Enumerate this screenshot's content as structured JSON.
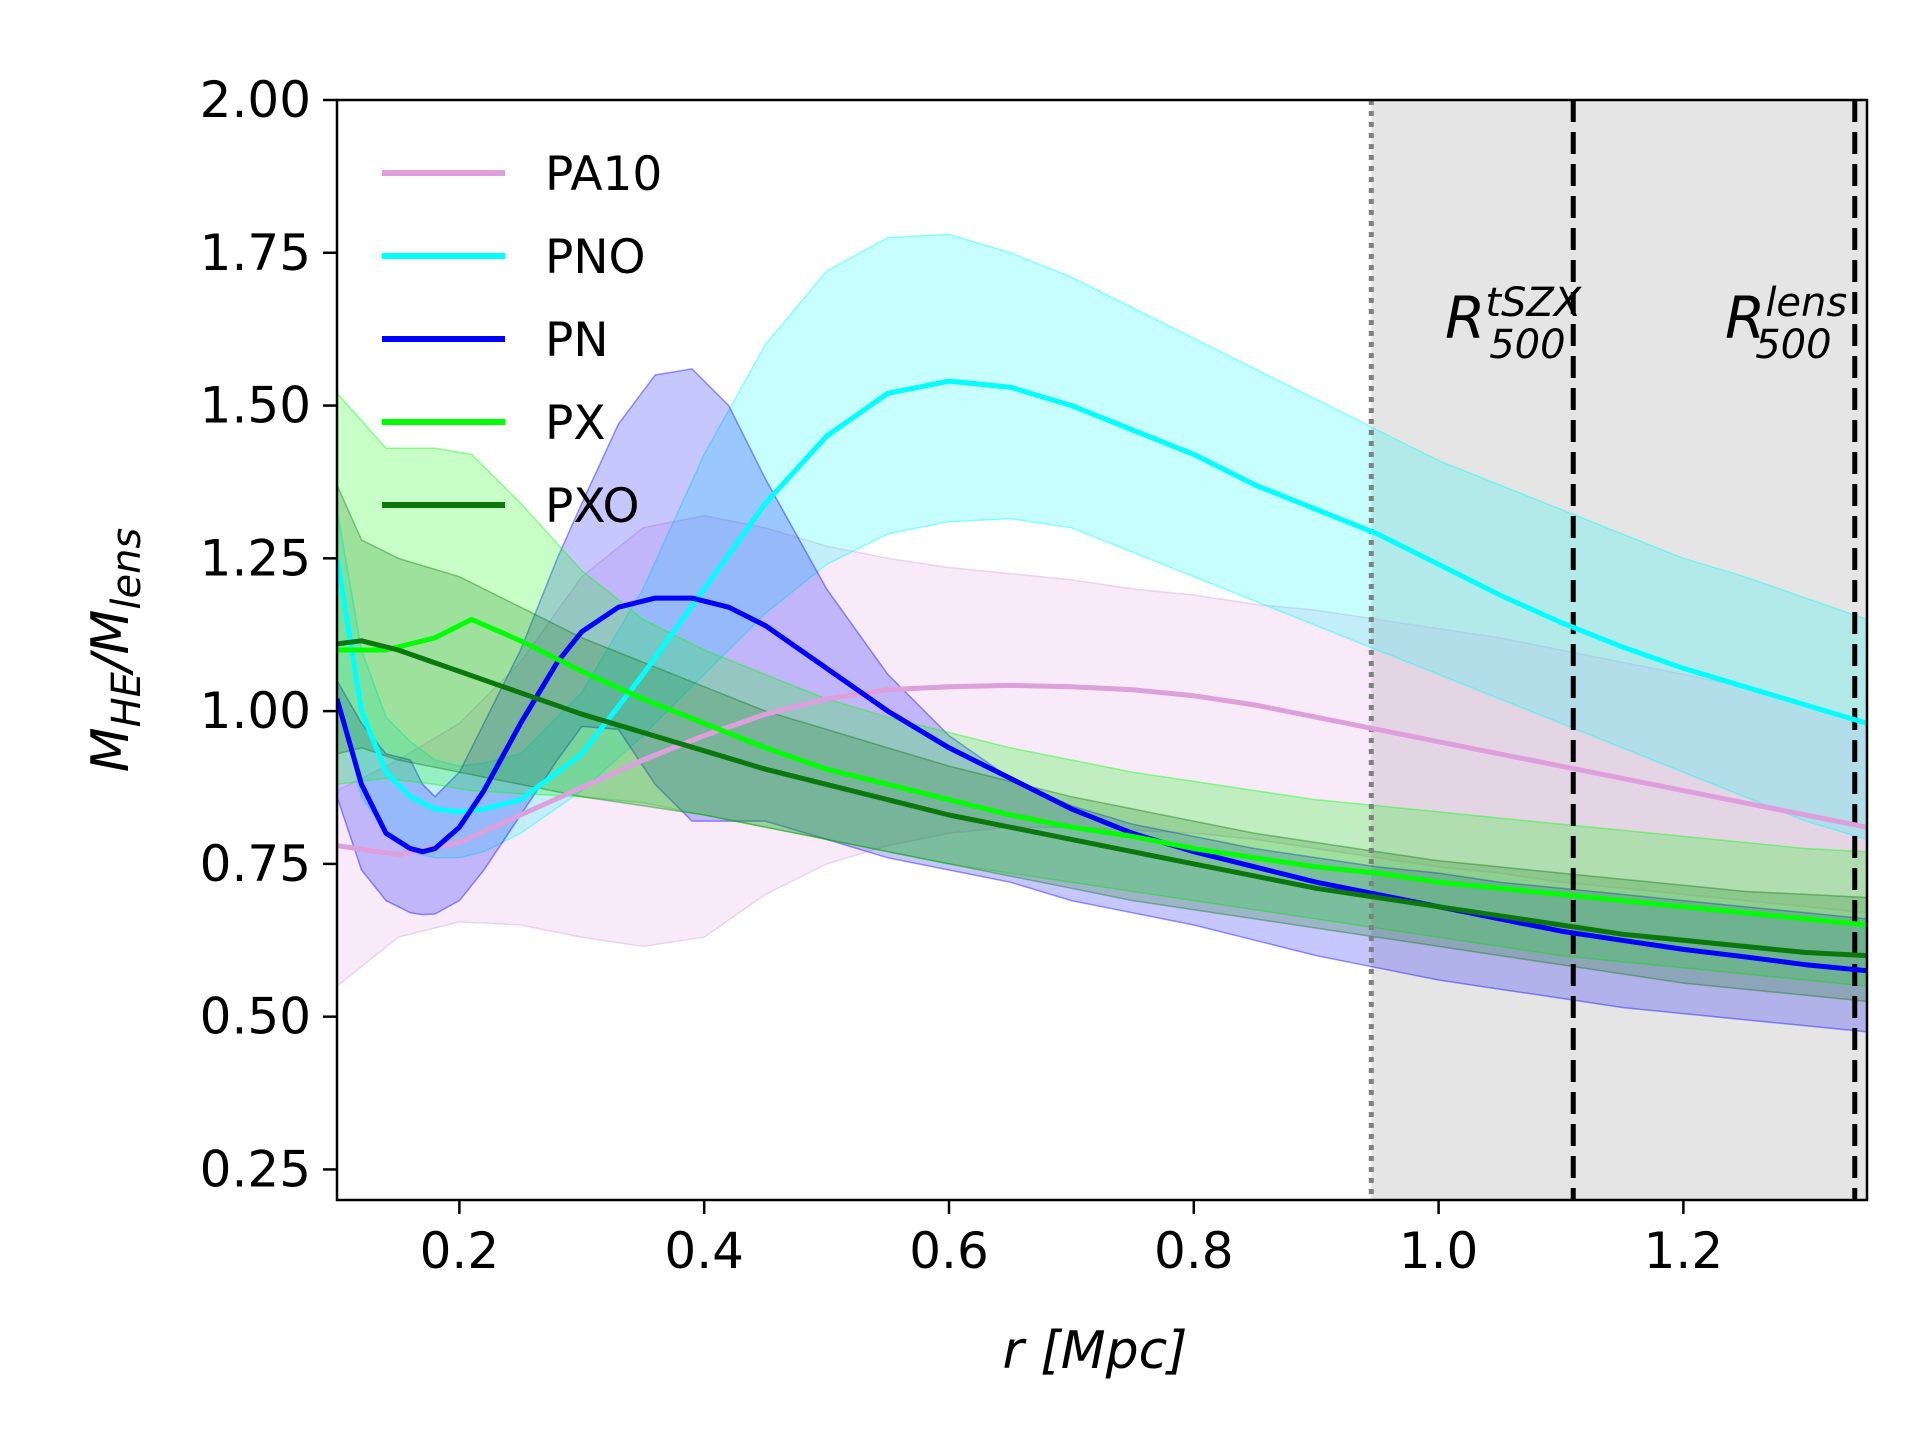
{
  "chart_data": {
    "type": "line",
    "title": "",
    "xlabel": "r [Mpc]",
    "ylabel": "M_HE/M_lens",
    "xlim": [
      0.1,
      1.35
    ],
    "ylim": [
      0.2,
      2.0
    ],
    "xticks": [
      {
        "value": 0.2,
        "label": "0.2"
      },
      {
        "value": 0.4,
        "label": "0.4"
      },
      {
        "value": 0.6,
        "label": "0.6"
      },
      {
        "value": 0.8,
        "label": "0.8"
      },
      {
        "value": 1.0,
        "label": "1.0"
      },
      {
        "value": 1.2,
        "label": "1.2"
      }
    ],
    "yticks": [
      {
        "value": 0.25,
        "label": "0.25"
      },
      {
        "value": 0.5,
        "label": "0.50"
      },
      {
        "value": 0.75,
        "label": "0.75"
      },
      {
        "value": 1.0,
        "label": "1.00"
      },
      {
        "value": 1.25,
        "label": "1.25"
      },
      {
        "value": 1.5,
        "label": "1.50"
      },
      {
        "value": 1.75,
        "label": "1.75"
      },
      {
        "value": 2.0,
        "label": "2.00"
      }
    ],
    "grid": false,
    "legend_position": "top-left",
    "shaded_region": {
      "x_from": 0.945,
      "x_to": 1.35,
      "color": "#e5e5e5"
    },
    "vlines": [
      {
        "x": 0.945,
        "style": "dotted",
        "color": "#808080"
      },
      {
        "x": 1.11,
        "style": "dashed",
        "color": "#000000",
        "label_main": "R",
        "label_sup": "tSZX",
        "label_sub": "500"
      },
      {
        "x": 1.34,
        "style": "dashed",
        "color": "#000000",
        "label_main": "R",
        "label_sup": "lens",
        "label_sub": "500"
      }
    ],
    "series": [
      {
        "name": "PA10",
        "color": "#dda0dd",
        "x": [
          0.1,
          0.15,
          0.2,
          0.25,
          0.3,
          0.35,
          0.4,
          0.45,
          0.5,
          0.55,
          0.6,
          0.65,
          0.7,
          0.75,
          0.8,
          0.85,
          0.9,
          0.95,
          1.0,
          1.05,
          1.1,
          1.15,
          1.2,
          1.25,
          1.3,
          1.35
        ],
        "y": [
          0.78,
          0.765,
          0.785,
          0.83,
          0.875,
          0.92,
          0.96,
          0.995,
          1.02,
          1.035,
          1.04,
          1.042,
          1.04,
          1.035,
          1.025,
          1.01,
          0.99,
          0.97,
          0.95,
          0.93,
          0.91,
          0.89,
          0.87,
          0.85,
          0.83,
          0.81
        ],
        "lower": [
          0.55,
          0.63,
          0.655,
          0.65,
          0.63,
          0.615,
          0.63,
          0.7,
          0.75,
          0.78,
          0.8,
          0.81,
          0.81,
          0.805,
          0.8,
          0.79,
          0.775,
          0.76,
          0.745,
          0.735,
          0.72,
          0.71,
          0.7,
          0.69,
          0.68,
          0.67
        ],
        "upper": [
          0.87,
          0.92,
          0.98,
          1.08,
          1.22,
          1.3,
          1.32,
          1.3,
          1.27,
          1.25,
          1.235,
          1.225,
          1.215,
          1.2,
          1.19,
          1.175,
          1.165,
          1.15,
          1.135,
          1.12,
          1.1,
          1.08,
          1.06,
          1.04,
          1.01,
          0.98
        ]
      },
      {
        "name": "PNO",
        "color": "#00ffff",
        "x": [
          0.1,
          0.12,
          0.14,
          0.16,
          0.18,
          0.2,
          0.22,
          0.25,
          0.3,
          0.35,
          0.4,
          0.45,
          0.5,
          0.55,
          0.6,
          0.65,
          0.7,
          0.75,
          0.8,
          0.85,
          0.9,
          0.95,
          1.0,
          1.05,
          1.1,
          1.15,
          1.2,
          1.25,
          1.3,
          1.35
        ],
        "y": [
          1.25,
          1.0,
          0.9,
          0.86,
          0.84,
          0.835,
          0.84,
          0.855,
          0.93,
          1.06,
          1.2,
          1.34,
          1.45,
          1.52,
          1.54,
          1.53,
          1.5,
          1.46,
          1.42,
          1.37,
          1.33,
          1.29,
          1.24,
          1.19,
          1.145,
          1.105,
          1.07,
          1.04,
          1.01,
          0.98
        ],
        "lower": [
          1.03,
          0.86,
          0.8,
          0.77,
          0.76,
          0.76,
          0.77,
          0.8,
          0.87,
          0.96,
          1.06,
          1.16,
          1.24,
          1.29,
          1.31,
          1.315,
          1.3,
          1.26,
          1.22,
          1.18,
          1.14,
          1.1,
          1.06,
          1.02,
          0.98,
          0.94,
          0.9,
          0.86,
          0.82,
          0.79
        ],
        "upper": [
          1.33,
          1.1,
          0.99,
          0.95,
          0.92,
          0.91,
          0.915,
          0.93,
          1.03,
          1.2,
          1.42,
          1.6,
          1.72,
          1.775,
          1.78,
          1.75,
          1.71,
          1.66,
          1.61,
          1.56,
          1.51,
          1.46,
          1.41,
          1.37,
          1.33,
          1.29,
          1.25,
          1.22,
          1.185,
          1.15
        ]
      },
      {
        "name": "PN",
        "color": "#0000ff",
        "x": [
          0.1,
          0.12,
          0.14,
          0.16,
          0.17,
          0.18,
          0.2,
          0.22,
          0.25,
          0.28,
          0.3,
          0.33,
          0.36,
          0.39,
          0.42,
          0.45,
          0.5,
          0.55,
          0.6,
          0.65,
          0.7,
          0.75,
          0.8,
          0.85,
          0.9,
          0.95,
          1.0,
          1.05,
          1.1,
          1.15,
          1.2,
          1.25,
          1.3,
          1.35
        ],
        "y": [
          1.02,
          0.88,
          0.8,
          0.775,
          0.77,
          0.775,
          0.81,
          0.87,
          0.98,
          1.08,
          1.13,
          1.17,
          1.185,
          1.185,
          1.17,
          1.14,
          1.07,
          1.0,
          0.94,
          0.89,
          0.84,
          0.8,
          0.77,
          0.745,
          0.72,
          0.7,
          0.68,
          0.66,
          0.64,
          0.625,
          0.61,
          0.598,
          0.585,
          0.575
        ],
        "lower": [
          0.86,
          0.74,
          0.69,
          0.67,
          0.667,
          0.668,
          0.69,
          0.74,
          0.83,
          0.92,
          0.975,
          0.97,
          0.88,
          0.82,
          0.82,
          0.82,
          0.79,
          0.76,
          0.74,
          0.72,
          0.69,
          0.67,
          0.65,
          0.625,
          0.6,
          0.58,
          0.56,
          0.545,
          0.53,
          0.515,
          0.505,
          0.495,
          0.485,
          0.475
        ],
        "upper": [
          1.05,
          0.98,
          0.93,
          0.92,
          0.88,
          0.86,
          0.9,
          0.98,
          1.1,
          1.25,
          1.34,
          1.47,
          1.55,
          1.56,
          1.5,
          1.38,
          1.2,
          1.06,
          0.96,
          0.89,
          0.845,
          0.815,
          0.795,
          0.775,
          0.76,
          0.745,
          0.735,
          0.72,
          0.71,
          0.7,
          0.69,
          0.68,
          0.67,
          0.66
        ]
      },
      {
        "name": "PX",
        "color": "#00ff00",
        "x": [
          0.1,
          0.14,
          0.18,
          0.21,
          0.25,
          0.3,
          0.35,
          0.4,
          0.45,
          0.5,
          0.55,
          0.6,
          0.65,
          0.7,
          0.75,
          0.8,
          0.85,
          0.9,
          0.95,
          1.0,
          1.05,
          1.1,
          1.15,
          1.2,
          1.25,
          1.3,
          1.35
        ],
        "y": [
          1.1,
          1.1,
          1.12,
          1.15,
          1.115,
          1.065,
          1.02,
          0.98,
          0.94,
          0.905,
          0.88,
          0.855,
          0.83,
          0.81,
          0.795,
          0.775,
          0.76,
          0.745,
          0.735,
          0.72,
          0.71,
          0.7,
          0.69,
          0.68,
          0.67,
          0.66,
          0.65
        ],
        "lower": [
          0.88,
          0.89,
          0.88,
          0.87,
          0.865,
          0.86,
          0.85,
          0.83,
          0.81,
          0.79,
          0.77,
          0.75,
          0.735,
          0.72,
          0.705,
          0.69,
          0.675,
          0.66,
          0.645,
          0.63,
          0.615,
          0.6,
          0.59,
          0.58,
          0.57,
          0.56,
          0.55
        ],
        "upper": [
          1.52,
          1.43,
          1.43,
          1.42,
          1.34,
          1.23,
          1.15,
          1.1,
          1.06,
          1.02,
          0.99,
          0.965,
          0.94,
          0.92,
          0.9,
          0.885,
          0.87,
          0.855,
          0.845,
          0.835,
          0.825,
          0.815,
          0.805,
          0.795,
          0.785,
          0.775,
          0.77
        ]
      },
      {
        "name": "PXO",
        "color": "#0a780a",
        "x": [
          0.1,
          0.12,
          0.15,
          0.2,
          0.25,
          0.3,
          0.35,
          0.4,
          0.45,
          0.5,
          0.55,
          0.6,
          0.65,
          0.7,
          0.75,
          0.8,
          0.85,
          0.9,
          0.95,
          1.0,
          1.05,
          1.1,
          1.15,
          1.2,
          1.25,
          1.3,
          1.35
        ],
        "y": [
          1.11,
          1.115,
          1.1,
          1.065,
          1.03,
          0.995,
          0.965,
          0.935,
          0.905,
          0.88,
          0.855,
          0.83,
          0.81,
          0.79,
          0.77,
          0.75,
          0.73,
          0.71,
          0.695,
          0.68,
          0.665,
          0.65,
          0.635,
          0.625,
          0.615,
          0.605,
          0.6
        ],
        "lower": [
          0.93,
          0.94,
          0.92,
          0.9,
          0.88,
          0.86,
          0.845,
          0.83,
          0.81,
          0.79,
          0.77,
          0.75,
          0.73,
          0.71,
          0.69,
          0.675,
          0.66,
          0.645,
          0.63,
          0.615,
          0.6,
          0.585,
          0.57,
          0.555,
          0.545,
          0.535,
          0.525
        ],
        "upper": [
          1.37,
          1.28,
          1.25,
          1.22,
          1.17,
          1.12,
          1.08,
          1.04,
          1.0,
          0.97,
          0.94,
          0.91,
          0.885,
          0.86,
          0.84,
          0.82,
          0.8,
          0.785,
          0.77,
          0.755,
          0.745,
          0.735,
          0.725,
          0.715,
          0.705,
          0.7,
          0.695
        ]
      }
    ]
  }
}
